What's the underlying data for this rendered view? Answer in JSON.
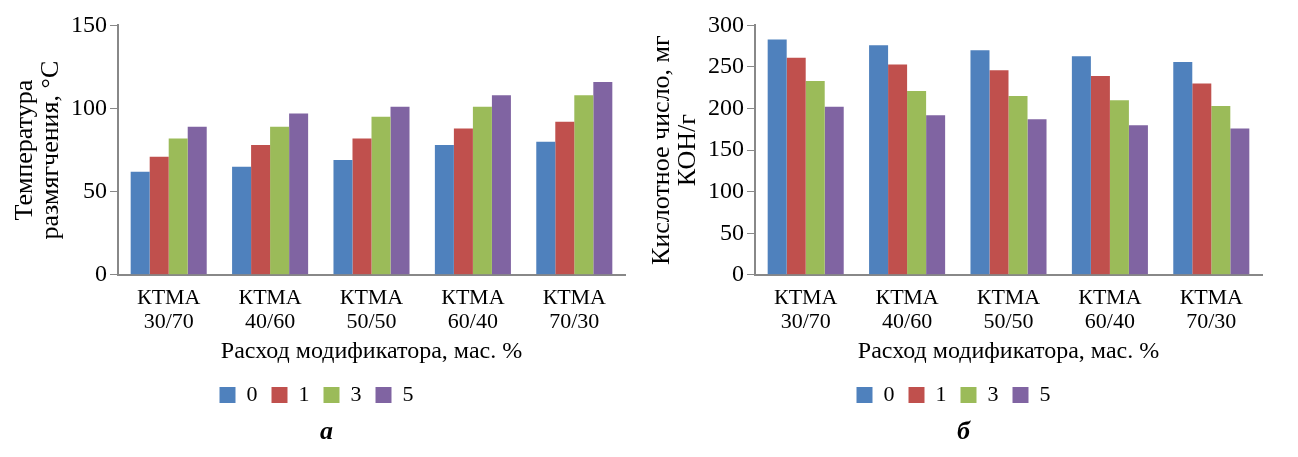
{
  "chart_data": [
    {
      "type": "bar",
      "title": "а",
      "xlabel": "Расход модификатора, мас. %",
      "ylabel": "Температура размягчения, °C",
      "categories": [
        "КТМА 30/70",
        "КТМА 40/60",
        "КТМА 50/50",
        "КТМА 60/40",
        "КТМА 70/30"
      ],
      "ylim": [
        0,
        150
      ],
      "yticks": [
        0,
        50,
        100,
        150
      ],
      "grid": false,
      "legend": "bottom",
      "series": [
        {
          "name": "0",
          "color": "#4f81bd",
          "values": [
            62,
            65,
            69,
            78,
            80
          ]
        },
        {
          "name": "1",
          "color": "#c0504d",
          "values": [
            71,
            78,
            82,
            88,
            92
          ]
        },
        {
          "name": "3",
          "color": "#9bbb59",
          "values": [
            82,
            89,
            95,
            101,
            108
          ]
        },
        {
          "name": "5",
          "color": "#8064a2",
          "values": [
            89,
            97,
            101,
            108,
            116
          ]
        }
      ]
    },
    {
      "type": "bar",
      "title": "б",
      "xlabel": "Расход модификатора, мас. %",
      "ylabel": "Кислотное число, мг КОН/г",
      "categories": [
        "КТМА 30/70",
        "КТМА 40/60",
        "КТМА 50/50",
        "КТМА 60/40",
        "КТМА 70/30"
      ],
      "ylim": [
        0,
        300
      ],
      "yticks": [
        0,
        50,
        100,
        150,
        200,
        250,
        300
      ],
      "grid": false,
      "legend": "bottom",
      "series": [
        {
          "name": "0",
          "color": "#4f81bd",
          "values": [
            283,
            276,
            270,
            263,
            256
          ]
        },
        {
          "name": "1",
          "color": "#c0504d",
          "values": [
            261,
            253,
            246,
            239,
            230
          ]
        },
        {
          "name": "3",
          "color": "#9bbb59",
          "values": [
            233,
            221,
            215,
            210,
            203
          ]
        },
        {
          "name": "5",
          "color": "#8064a2",
          "values": [
            202,
            192,
            187,
            180,
            176
          ]
        }
      ]
    }
  ]
}
